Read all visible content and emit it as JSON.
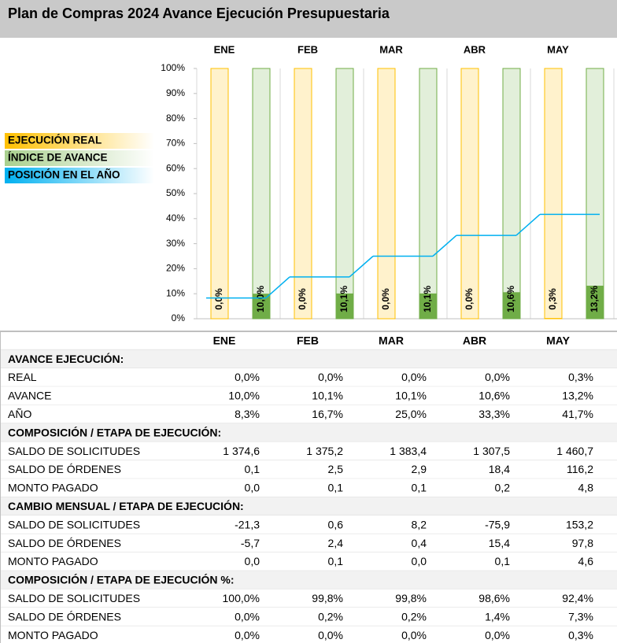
{
  "chart_data": {
    "type": "bar",
    "title": "Plan de Compras 2024 Avance Ejecución Presupuestaria",
    "categories": [
      "ENE",
      "FEB",
      "MAR",
      "ABR",
      "MAY"
    ],
    "series": [
      {
        "name": "EJECUCIÓN REAL",
        "color": "#ffc000",
        "values": [
          0.0,
          0.0,
          0.0,
          0.0,
          0.3
        ],
        "value_labels": [
          "0,0%",
          "0,0%",
          "0,0%",
          "0,0%",
          "0,3%"
        ]
      },
      {
        "name": "ÍNDICE DE AVANCE",
        "color": "#70ad47",
        "values": [
          10.0,
          10.1,
          10.1,
          10.6,
          13.2
        ],
        "value_labels": [
          "10,0%",
          "10,1%",
          "10,1%",
          "10,6%",
          "13,2%"
        ]
      },
      {
        "name": "POSICIÓN EN EL AÑO",
        "color": "#00b0f0",
        "type": "line",
        "values": [
          8.3,
          16.7,
          25.0,
          33.3,
          41.7
        ]
      }
    ],
    "ylim": [
      0,
      100
    ],
    "yticks": [
      {
        "value": 0,
        "label": "0%"
      },
      {
        "value": 10,
        "label": "10%"
      },
      {
        "value": 20,
        "label": "20%"
      },
      {
        "value": 30,
        "label": "30%"
      },
      {
        "value": 40,
        "label": "40%"
      },
      {
        "value": 50,
        "label": "50%"
      },
      {
        "value": 60,
        "label": "60%"
      },
      {
        "value": 70,
        "label": "70%"
      },
      {
        "value": 80,
        "label": "80%"
      },
      {
        "value": 90,
        "label": "90%"
      },
      {
        "value": 100,
        "label": "100%"
      }
    ]
  },
  "table": {
    "header": [
      "ENE",
      "FEB",
      "MAR",
      "ABR",
      "MAY"
    ],
    "sections": [
      {
        "title": "AVANCE EJECUCIÓN:",
        "rows": [
          [
            "REAL",
            "0,0%",
            "0,0%",
            "0,0%",
            "0,0%",
            "0,3%"
          ],
          [
            "AVANCE",
            "10,0%",
            "10,1%",
            "10,1%",
            "10,6%",
            "13,2%"
          ],
          [
            "AÑO",
            "8,3%",
            "16,7%",
            "25,0%",
            "33,3%",
            "41,7%"
          ]
        ]
      },
      {
        "title": "COMPOSICIÓN / ETAPA DE EJECUCIÓN:",
        "rows": [
          [
            "SALDO DE SOLICITUDES",
            "1 374,6",
            "1 375,2",
            "1 383,4",
            "1 307,5",
            "1 460,7"
          ],
          [
            "SALDO DE ÓRDENES",
            "0,1",
            "2,5",
            "2,9",
            "18,4",
            "116,2"
          ],
          [
            "MONTO PAGADO",
            "0,0",
            "0,1",
            "0,1",
            "0,2",
            "4,8"
          ]
        ]
      },
      {
        "title": "CAMBIO MENSUAL / ETAPA DE EJECUCIÓN:",
        "rows": [
          [
            "SALDO DE SOLICITUDES",
            "-21,3",
            "0,6",
            "8,2",
            "-75,9",
            "153,2"
          ],
          [
            "SALDO DE ÓRDENES",
            "-5,7",
            "2,4",
            "0,4",
            "15,4",
            "97,8"
          ],
          [
            "MONTO PAGADO",
            "0,0",
            "0,1",
            "0,0",
            "0,1",
            "4,6"
          ]
        ]
      },
      {
        "title": "COMPOSICIÓN / ETAPA DE EJECUCIÓN %:",
        "rows": [
          [
            "SALDO DE SOLICITUDES",
            "100,0%",
            "99,8%",
            "99,8%",
            "98,6%",
            "92,4%"
          ],
          [
            "SALDO DE ÓRDENES",
            "0,0%",
            "0,2%",
            "0,2%",
            "1,4%",
            "7,3%"
          ],
          [
            "MONTO PAGADO",
            "0,0%",
            "0,0%",
            "0,0%",
            "0,0%",
            "0,3%"
          ]
        ]
      }
    ]
  }
}
